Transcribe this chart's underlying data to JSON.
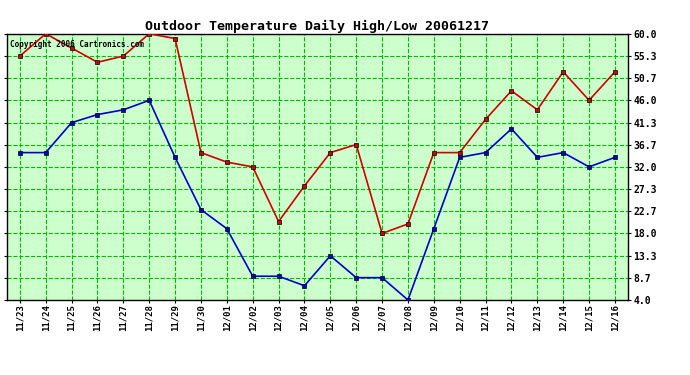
{
  "title": "Outdoor Temperature Daily High/Low 20061217",
  "copyright": "Copyright 2006 Cartronics.com",
  "dates": [
    "11/23",
    "11/24",
    "11/25",
    "11/26",
    "11/27",
    "11/28",
    "11/29",
    "11/30",
    "12/01",
    "12/02",
    "12/03",
    "12/04",
    "12/05",
    "12/06",
    "12/07",
    "12/08",
    "12/09",
    "12/10",
    "12/11",
    "12/12",
    "12/13",
    "12/14",
    "12/15",
    "12/16"
  ],
  "high_temps": [
    55.3,
    60.0,
    57.0,
    54.0,
    55.3,
    60.0,
    59.0,
    35.0,
    33.0,
    32.0,
    20.5,
    28.0,
    35.0,
    36.7,
    18.0,
    20.0,
    35.0,
    35.0,
    42.0,
    48.0,
    44.0,
    52.0,
    46.0,
    52.0
  ],
  "low_temps": [
    35.0,
    35.0,
    41.3,
    43.0,
    44.0,
    46.0,
    34.0,
    23.0,
    19.0,
    9.0,
    9.0,
    7.0,
    13.3,
    8.7,
    8.7,
    4.0,
    19.0,
    34.0,
    35.0,
    40.0,
    34.0,
    35.0,
    32.0,
    34.0
  ],
  "high_color": "#cc0000",
  "low_color": "#0000cc",
  "marker": "s",
  "markersize": 3,
  "linewidth": 1.2,
  "bg_color": "#ffffff",
  "plot_bg_color": "#ccffcc",
  "grid_color": "#00bb00",
  "title_color": "#000000",
  "border_color": "#000000",
  "ytick_labels": [
    "4.0",
    "8.7",
    "13.3",
    "18.0",
    "22.7",
    "27.3",
    "32.0",
    "36.7",
    "41.3",
    "46.0",
    "50.7",
    "55.3",
    "60.0"
  ],
  "ytick_values": [
    4.0,
    8.7,
    13.3,
    18.0,
    22.7,
    27.3,
    32.0,
    36.7,
    41.3,
    46.0,
    50.7,
    55.3,
    60.0
  ],
  "ymin": 4.0,
  "ymax": 60.0
}
